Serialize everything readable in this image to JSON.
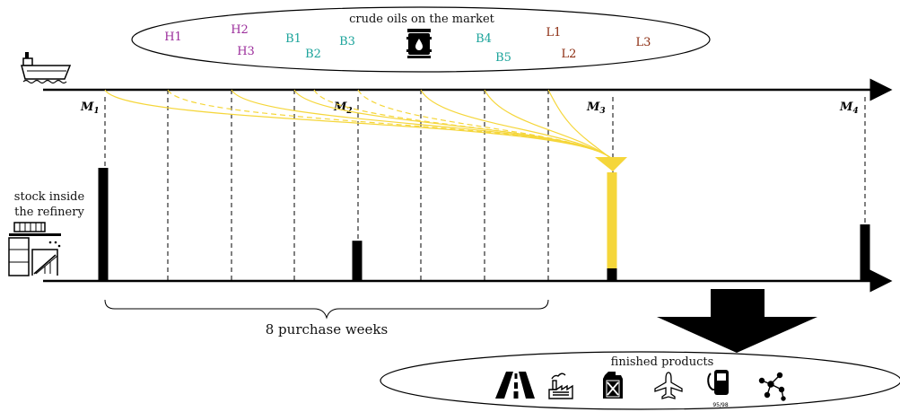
{
  "market": {
    "title": "crude oils on the market",
    "crudes": [
      {
        "label": "H1",
        "color": "#9b2d9b"
      },
      {
        "label": "H2",
        "color": "#9b2d9b"
      },
      {
        "label": "H3",
        "color": "#9b2d9b"
      },
      {
        "label": "B1",
        "color": "#1aa39a"
      },
      {
        "label": "B2",
        "color": "#1aa39a"
      },
      {
        "label": "B3",
        "color": "#1aa39a"
      },
      {
        "label": "B4",
        "color": "#1aa39a"
      },
      {
        "label": "B5",
        "color": "#1aa39a"
      },
      {
        "label": "L1",
        "color": "#8b2a0e"
      },
      {
        "label": "L2",
        "color": "#8b2a0e"
      },
      {
        "label": "L3",
        "color": "#8b2a0e"
      }
    ]
  },
  "months": [
    {
      "letter": "M",
      "sub": "1"
    },
    {
      "letter": "M",
      "sub": "2"
    },
    {
      "letter": "M",
      "sub": "3"
    },
    {
      "letter": "M",
      "sub": "4"
    }
  ],
  "stock_label": [
    "stock inside",
    "the refinery"
  ],
  "purchase_weeks_label": "8 purchase weeks",
  "finished": {
    "title": "finished products",
    "icons": [
      "asphalt-road-icon",
      "factory-icon",
      "jerrycan-icon",
      "airplane-icon",
      "fuel-pump-icon",
      "molecule-icon"
    ],
    "pump_grade": "95/98"
  },
  "colors": {
    "flow": "#f5d63a",
    "stock": "#000000"
  },
  "stock_levels": {
    "M1": 0.9,
    "M2": 0.32,
    "M3_black": 0.1,
    "M3_yellow": 0.9,
    "M4": 0.45
  }
}
